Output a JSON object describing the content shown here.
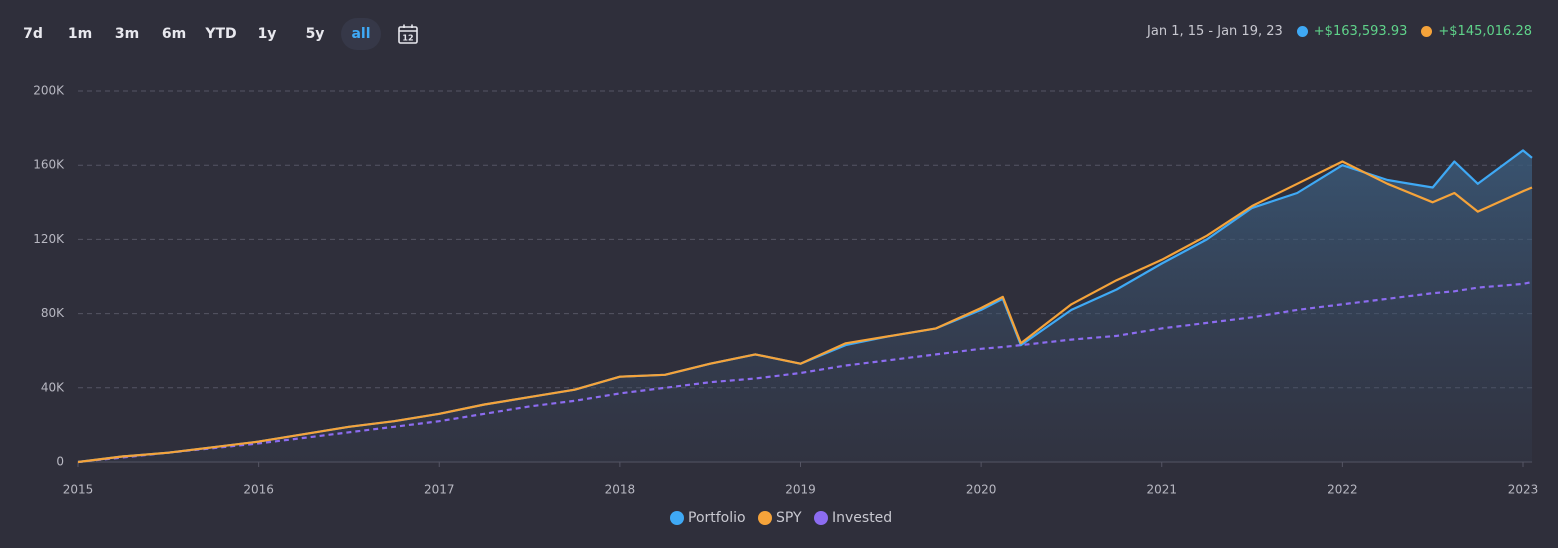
{
  "toolbar": {
    "periods": [
      "7d",
      "1m",
      "3m",
      "6m",
      "YTD",
      "1y",
      "5y",
      "all"
    ],
    "active": 7,
    "calendar_label": "12"
  },
  "summary": {
    "range": "Jan 1, 15 - Jan 19, 23",
    "items": [
      "+$163,593.93",
      "+$145,016.28"
    ]
  },
  "chart_data": {
    "type": "line",
    "x": [
      2015,
      2015.25,
      2015.5,
      2015.75,
      2016,
      2016.25,
      2016.5,
      2016.75,
      2017,
      2017.25,
      2017.5,
      2017.75,
      2018,
      2018.25,
      2018.5,
      2018.75,
      2019,
      2019.25,
      2019.5,
      2019.75,
      2020,
      2020.12,
      2020.22,
      2020.5,
      2020.75,
      2021,
      2021.25,
      2021.5,
      2021.75,
      2022,
      2022.25,
      2022.5,
      2022.62,
      2022.75,
      2023,
      2023.05
    ],
    "series": [
      {
        "name": "Portfolio",
        "color": "#3fa9f5",
        "fill": true,
        "values": [
          0,
          3000,
          5000,
          8000,
          11000,
          15000,
          19000,
          22000,
          26000,
          31000,
          35000,
          39000,
          46000,
          47000,
          53000,
          58000,
          53000,
          63000,
          68000,
          72000,
          82000,
          88000,
          63000,
          82000,
          93000,
          107000,
          120000,
          137000,
          145000,
          160000,
          152000,
          148000,
          162000,
          150000,
          168000,
          164000
        ]
      },
      {
        "name": "SPY",
        "color": "#f5a33a",
        "values": [
          0,
          3000,
          5000,
          8000,
          11000,
          15000,
          19000,
          22000,
          26000,
          31000,
          35000,
          39000,
          46000,
          47000,
          53000,
          58000,
          53000,
          64000,
          68000,
          72000,
          83000,
          89000,
          64000,
          85000,
          98000,
          109000,
          122000,
          138000,
          150000,
          162000,
          150000,
          140000,
          145000,
          135000,
          146000,
          148000
        ]
      },
      {
        "name": "Invested",
        "color": "#8c6cf0",
        "dashed": true,
        "values": [
          0,
          2500,
          5000,
          7500,
          10000,
          13000,
          16000,
          19000,
          22000,
          26000,
          30000,
          33000,
          37000,
          40000,
          43000,
          45000,
          48000,
          52000,
          55000,
          58000,
          61000,
          62000,
          63000,
          66000,
          68000,
          72000,
          75000,
          78000,
          82000,
          85000,
          88000,
          91000,
          92000,
          94000,
          96000,
          97000
        ]
      }
    ],
    "xlim": [
      2015,
      2023.05
    ],
    "xticks": [
      2015,
      2016,
      2017,
      2018,
      2019,
      2020,
      2021,
      2022,
      2023
    ],
    "ylim": [
      0,
      200000
    ],
    "yticks": [
      0,
      {
        "value": 40000,
        "label": "40K"
      },
      {
        "value": 80000,
        "label": "80K"
      },
      {
        "value": 120000,
        "label": "120K"
      },
      {
        "value": 160000,
        "label": "160K"
      },
      {
        "value": 200000,
        "label": "200K"
      }
    ],
    "grid": true
  }
}
